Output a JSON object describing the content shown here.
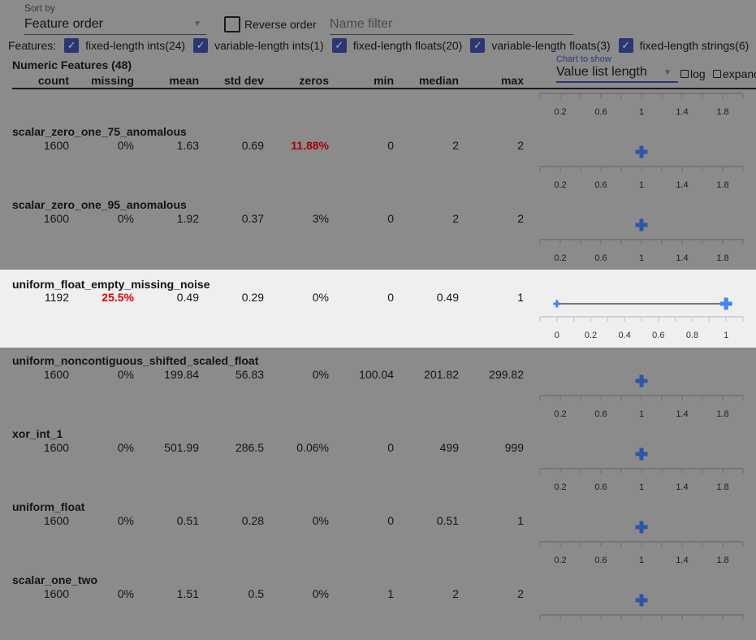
{
  "controls": {
    "sort_label": "Sort by",
    "sort_value": "Feature order",
    "reverse_label": "Reverse order",
    "reverse_checked": false,
    "name_filter_placeholder": "Name filter",
    "features_label": "Features:",
    "feature_filters": [
      {
        "label": "fixed-length ints(24)",
        "checked": true
      },
      {
        "label": "variable-length ints(1)",
        "checked": true
      },
      {
        "label": "fixed-length floats(20)",
        "checked": true
      },
      {
        "label": "variable-length floats(3)",
        "checked": true
      },
      {
        "label": "fixed-length strings(6)",
        "checked": true
      }
    ],
    "chart_label": "Chart to show",
    "chart_value": "Value list length",
    "log_label": "log",
    "expand_label": "expand"
  },
  "table": {
    "section_title": "Numeric Features (48)",
    "columns": [
      "count",
      "missing",
      "mean",
      "std dev",
      "zeros",
      "min",
      "median",
      "max"
    ],
    "top_axis": {
      "domain": [
        0,
        2
      ],
      "tick_step": 0.2,
      "labels": [
        "0.2",
        "0.6",
        "1",
        "1.4",
        "1.8"
      ]
    },
    "rows": [
      {
        "name": "scalar_zero_one_75_anomalous",
        "values": [
          "1600",
          "0%",
          "1.63",
          "0.69",
          "11.88%",
          "0",
          "2",
          "2"
        ],
        "highlight_col": 4,
        "chart": {
          "domain": [
            0,
            2
          ],
          "tick_step": 0.2,
          "labels": [
            "0.2",
            "0.6",
            "1",
            "1.4",
            "1.8"
          ],
          "points": [
            1
          ]
        }
      },
      {
        "name": "scalar_zero_one_95_anomalous",
        "values": [
          "1600",
          "0%",
          "1.92",
          "0.37",
          "3%",
          "0",
          "2",
          "2"
        ],
        "chart": {
          "domain": [
            0,
            2
          ],
          "tick_step": 0.2,
          "labels": [
            "0.2",
            "0.6",
            "1",
            "1.4",
            "1.8"
          ],
          "points": [
            1
          ]
        }
      },
      {
        "name": "uniform_float_empty_missing_noise",
        "values": [
          "1192",
          "25.5%",
          "0.49",
          "0.29",
          "0%",
          "0",
          "0.49",
          "1"
        ],
        "highlight_col": 1,
        "selected": true,
        "chart": {
          "domain": [
            -0.1,
            1.1
          ],
          "tick_step": 0.1,
          "labels": [
            "0",
            "0.2",
            "0.4",
            "0.6",
            "0.8",
            "1"
          ],
          "points": [
            0,
            1
          ],
          "line": true
        }
      },
      {
        "name": "uniform_noncontiguous_shifted_scaled_float",
        "values": [
          "1600",
          "0%",
          "199.84",
          "56.83",
          "0%",
          "100.04",
          "201.82",
          "299.82"
        ],
        "chart": {
          "domain": [
            0,
            2
          ],
          "tick_step": 0.2,
          "labels": [
            "0.2",
            "0.6",
            "1",
            "1.4",
            "1.8"
          ],
          "points": [
            1
          ]
        }
      },
      {
        "name": "xor_int_1",
        "values": [
          "1600",
          "0%",
          "501.99",
          "286.5",
          "0.06%",
          "0",
          "499",
          "999"
        ],
        "chart": {
          "domain": [
            0,
            2
          ],
          "tick_step": 0.2,
          "labels": [
            "0.2",
            "0.6",
            "1",
            "1.4",
            "1.8"
          ],
          "points": [
            1
          ]
        }
      },
      {
        "name": "uniform_float",
        "values": [
          "1600",
          "0%",
          "0.51",
          "0.28",
          "0%",
          "0",
          "0.51",
          "1"
        ],
        "chart": {
          "domain": [
            0,
            2
          ],
          "tick_step": 0.2,
          "labels": [
            "0.2",
            "0.6",
            "1",
            "1.4",
            "1.8"
          ],
          "points": [
            1
          ]
        }
      },
      {
        "name": "scalar_one_two",
        "values": [
          "1600",
          "0%",
          "1.51",
          "0.5",
          "0%",
          "1",
          "2",
          "2"
        ],
        "chart": {
          "domain": [
            0,
            2
          ],
          "tick_step": 0.2,
          "labels": [],
          "points": [
            1
          ]
        }
      }
    ]
  },
  "colors": {
    "accent": "#4285f4",
    "accent_dimmed": "#2c55a8",
    "alert": "#e00000",
    "overlay_bg": "#8b8b8b",
    "selected_bg": "#efefef"
  }
}
